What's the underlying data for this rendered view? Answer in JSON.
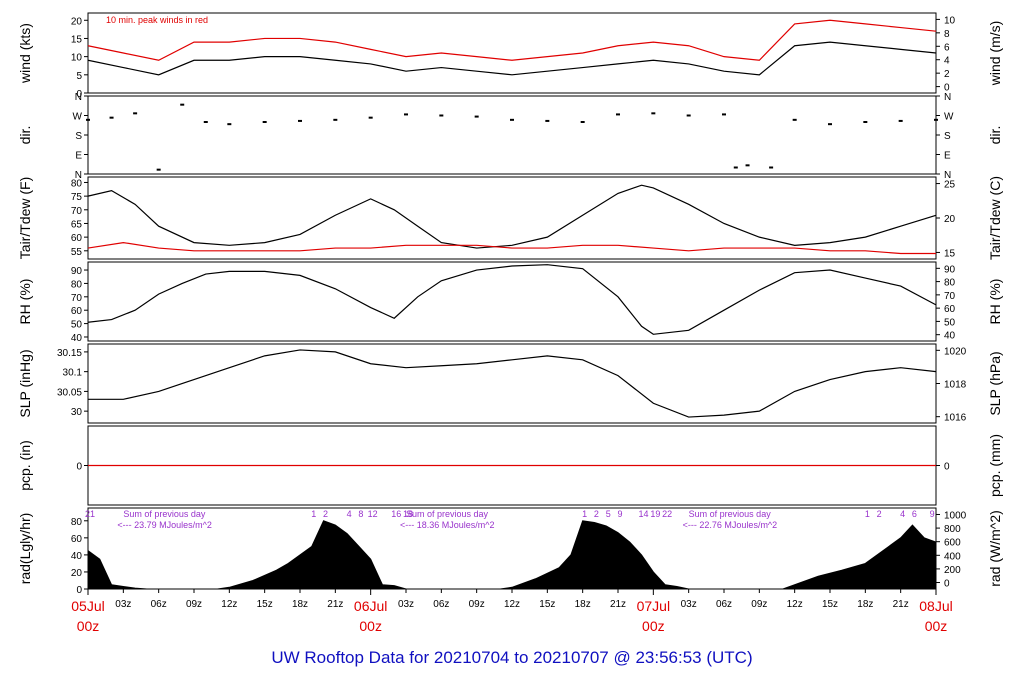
{
  "footer_title": "UW Rooftop Data for 20210704  to  20210707 @ 23:56:53  (UTC)",
  "colors": {
    "primary": "#000000",
    "accent_red": "#e00000",
    "purple": "#9933cc",
    "footer_blue": "#1010c0"
  },
  "time_axis": {
    "tick_labels": [
      "03z",
      "06z",
      "09z",
      "12z",
      "15z",
      "18z",
      "21z",
      "03z",
      "06z",
      "09z",
      "12z",
      "15z",
      "18z",
      "21z",
      "03z",
      "06z",
      "09z",
      "12z",
      "15z",
      "18z",
      "21z"
    ],
    "day_labels": [
      {
        "date": "05Jul",
        "time": "00z"
      },
      {
        "date": "06Jul",
        "time": "00z"
      },
      {
        "date": "07Jul",
        "time": "00z"
      },
      {
        "date": "08Jul",
        "time": "00z"
      }
    ],
    "range_hours": [
      0,
      72
    ]
  },
  "chart_data": [
    {
      "type": "line",
      "ylabel": "wind (kts)",
      "ylabel_right": "wind (m/s)",
      "annotation": "10 min. peak winds in red",
      "yticks": [
        0,
        5,
        10,
        15,
        20
      ],
      "yticks_right": [
        0,
        2,
        4,
        6,
        8,
        10
      ],
      "ylim": [
        0,
        22
      ],
      "series": [
        {
          "color": "#000000",
          "x": [
            0,
            3,
            6,
            9,
            12,
            15,
            18,
            21,
            24,
            27,
            30,
            33,
            36,
            39,
            42,
            45,
            48,
            51,
            54,
            57,
            60,
            63,
            66,
            69,
            72
          ],
          "y": [
            9,
            7,
            5,
            9,
            9,
            10,
            10,
            9,
            8,
            6,
            7,
            6,
            5,
            6,
            7,
            8,
            9,
            8,
            6,
            5,
            13,
            14,
            13,
            12,
            11
          ]
        },
        {
          "color": "#e00000",
          "x": [
            0,
            3,
            6,
            9,
            12,
            15,
            18,
            21,
            24,
            27,
            30,
            33,
            36,
            39,
            42,
            45,
            48,
            51,
            54,
            57,
            60,
            63,
            66,
            69,
            72
          ],
          "y": [
            13,
            11,
            9,
            14,
            14,
            15,
            15,
            14,
            12,
            10,
            11,
            10,
            9,
            10,
            11,
            13,
            14,
            13,
            10,
            9,
            19,
            20,
            19,
            18,
            17
          ]
        }
      ]
    },
    {
      "type": "scatter",
      "ylabel": "dir.",
      "ylabel_right": "dir.",
      "yticks": [
        "N",
        "E",
        "S",
        "W",
        "N"
      ],
      "yticks_right": [
        "N",
        "E",
        "S",
        "W",
        "N"
      ],
      "ylim": [
        0,
        360
      ],
      "series": [
        {
          "color": "#000000",
          "x": [
            0,
            2,
            4,
            6,
            8,
            10,
            12,
            15,
            18,
            21,
            24,
            27,
            30,
            33,
            36,
            39,
            42,
            45,
            48,
            51,
            54,
            55,
            56,
            58,
            60,
            63,
            66,
            69,
            72
          ],
          "y": [
            250,
            260,
            280,
            20,
            320,
            240,
            230,
            240,
            245,
            250,
            260,
            275,
            270,
            265,
            250,
            245,
            240,
            275,
            280,
            270,
            275,
            30,
            40,
            30,
            250,
            230,
            240,
            245,
            250
          ]
        }
      ]
    },
    {
      "type": "line",
      "ylabel": "Tair/Tdew (F)",
      "ylabel_right": "Tair/Tdew (C)",
      "yticks": [
        55,
        60,
        65,
        70,
        75,
        80
      ],
      "yticks_right": [
        15,
        20,
        25
      ],
      "ylim": [
        52,
        82
      ],
      "series": [
        {
          "color": "#000000",
          "x": [
            0,
            2,
            4,
            6,
            9,
            12,
            15,
            18,
            21,
            24,
            26,
            28,
            30,
            33,
            36,
            39,
            42,
            45,
            47,
            48,
            51,
            54,
            57,
            60,
            63,
            66,
            69,
            72
          ],
          "y": [
            75,
            77,
            72,
            64,
            58,
            57,
            58,
            61,
            68,
            74,
            70,
            64,
            58,
            56,
            57,
            60,
            68,
            76,
            79,
            78,
            72,
            65,
            60,
            57,
            58,
            60,
            64,
            68
          ]
        },
        {
          "color": "#e00000",
          "x": [
            0,
            3,
            6,
            9,
            12,
            15,
            18,
            21,
            24,
            27,
            30,
            33,
            36,
            39,
            42,
            45,
            48,
            51,
            54,
            57,
            60,
            63,
            66,
            69,
            72
          ],
          "y": [
            56,
            58,
            56,
            55,
            55,
            55,
            55,
            56,
            56,
            57,
            57,
            57,
            56,
            56,
            57,
            57,
            56,
            55,
            56,
            56,
            56,
            55,
            55,
            54,
            54
          ]
        }
      ]
    },
    {
      "type": "line",
      "ylabel": "RH (%)",
      "ylabel_right": "RH (%)",
      "yticks": [
        40,
        50,
        60,
        70,
        80,
        90
      ],
      "yticks_right": [
        40,
        50,
        60,
        70,
        80,
        90
      ],
      "ylim": [
        37,
        96
      ],
      "series": [
        {
          "color": "#000000",
          "x": [
            0,
            2,
            4,
            6,
            8,
            10,
            12,
            15,
            18,
            21,
            24,
            26,
            28,
            30,
            33,
            36,
            39,
            42,
            45,
            47,
            48,
            51,
            54,
            57,
            60,
            63,
            66,
            69,
            72
          ],
          "y": [
            51,
            53,
            60,
            72,
            80,
            87,
            89,
            89,
            86,
            76,
            62,
            54,
            70,
            82,
            90,
            93,
            94,
            91,
            70,
            48,
            42,
            45,
            60,
            75,
            88,
            90,
            84,
            78,
            64
          ]
        }
      ]
    },
    {
      "type": "line",
      "ylabel": "SLP (inHg)",
      "ylabel_right": "SLP (hPa)",
      "yticks": [
        30.0,
        30.05,
        30.1,
        30.15
      ],
      "yticks_right": [
        1016,
        1018,
        1020
      ],
      "ylim": [
        29.97,
        30.17
      ],
      "series": [
        {
          "color": "#000000",
          "x": [
            0,
            3,
            6,
            9,
            12,
            15,
            18,
            21,
            24,
            27,
            30,
            33,
            36,
            39,
            42,
            45,
            48,
            51,
            54,
            57,
            60,
            63,
            66,
            69,
            72
          ],
          "y": [
            30.03,
            30.03,
            30.05,
            30.08,
            30.11,
            30.14,
            30.155,
            30.15,
            30.12,
            30.11,
            30.115,
            30.12,
            30.13,
            30.14,
            30.13,
            30.09,
            30.02,
            29.985,
            29.99,
            30.0,
            30.05,
            30.08,
            30.1,
            30.11,
            30.1
          ]
        }
      ]
    },
    {
      "type": "line",
      "ylabel": "pcp. (in)",
      "ylabel_right": "pcp. (mm)",
      "yticks": [
        0
      ],
      "yticks_right": [
        0
      ],
      "ylim": [
        -1,
        1
      ],
      "series": [
        {
          "color": "#e00000",
          "x": [
            0,
            72
          ],
          "y": [
            0,
            0
          ]
        }
      ]
    },
    {
      "type": "area",
      "ylabel": "rad(Lgly/hr)",
      "ylabel_right": "rad (W/m^2)",
      "yticks": [
        0,
        20,
        40,
        60,
        80
      ],
      "yticks_right": [
        0,
        200,
        400,
        600,
        800,
        1000
      ],
      "ylim": [
        0,
        95
      ],
      "top_labels": [
        "21",
        "1",
        "2",
        "4",
        "8",
        "12",
        "16",
        "18",
        "1",
        "2",
        "5",
        "9",
        "14",
        "19",
        "22",
        "1",
        "2",
        "4",
        "6",
        "9"
      ],
      "annotations": [
        {
          "text": "Sum of previous day",
          "value": "<--- 23.79 MJoules/m^2"
        },
        {
          "text": "Sum of previous day",
          "value": "<--- 18.36 MJoules/m^2"
        },
        {
          "text": "Sum of previous day",
          "value": "<--- 22.76 MJoules/m^2"
        }
      ],
      "series": [
        {
          "color": "#000000",
          "x": [
            0,
            1,
            2,
            3,
            4,
            5,
            6,
            11,
            12,
            14,
            16,
            17,
            18,
            19,
            20,
            21,
            22,
            23,
            24,
            25,
            26,
            27,
            35,
            36,
            38,
            40,
            41,
            42,
            43,
            44,
            45,
            46,
            47,
            48,
            49,
            50,
            51,
            59,
            60,
            62,
            64,
            66,
            67,
            68,
            69,
            70,
            71,
            72
          ],
          "y": [
            45,
            35,
            5,
            3,
            1,
            0,
            0,
            0,
            2,
            10,
            22,
            30,
            40,
            50,
            80,
            75,
            65,
            50,
            35,
            5,
            4,
            0,
            0,
            2,
            12,
            25,
            40,
            80,
            78,
            74,
            66,
            55,
            40,
            20,
            5,
            3,
            0,
            0,
            5,
            15,
            22,
            30,
            40,
            50,
            60,
            75,
            60,
            55
          ]
        }
      ]
    }
  ]
}
